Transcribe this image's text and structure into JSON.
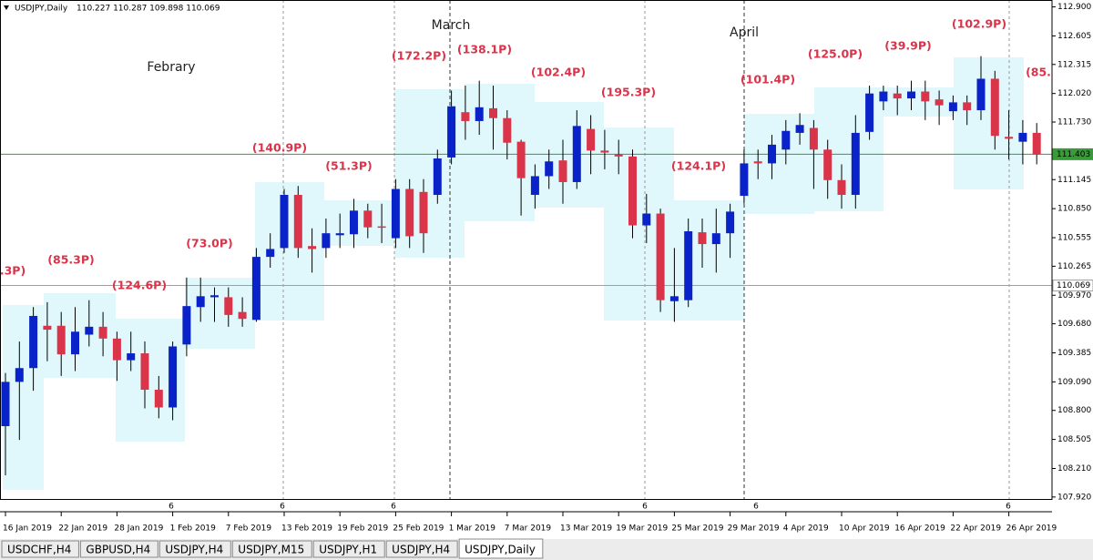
{
  "header": {
    "symbol": "USDJPY,Daily",
    "ohlc": "110.227 110.287 109.898 110.069"
  },
  "chart_data": {
    "type": "candlestick",
    "categories": [
      "16 Jan 2019",
      null,
      null,
      null,
      "22 Jan 2019",
      null,
      null,
      null,
      "28 Jan 2019",
      null,
      null,
      null,
      "1 Feb 2019",
      null,
      null,
      null,
      "7 Feb 2019",
      null,
      null,
      null,
      "13 Feb 2019",
      null,
      null,
      null,
      "19 Feb 2019",
      null,
      null,
      null,
      "25 Feb 2019",
      null,
      null,
      null,
      "1 Mar 2019",
      null,
      null,
      null,
      "7 Mar 2019",
      null,
      null,
      null,
      "13 Mar 2019",
      null,
      null,
      null,
      "19 Mar 2019",
      null,
      null,
      null,
      "25 Mar 2019",
      null,
      null,
      null,
      "29 Mar 2019",
      null,
      null,
      null,
      "4 Apr 2019",
      null,
      null,
      null,
      "10 Apr 2019",
      null,
      null,
      null,
      "16 Apr 2019",
      null,
      null,
      null,
      "22 Apr 2019",
      null,
      null,
      null,
      "26 Apr 2019",
      null,
      null
    ],
    "open": [
      108.64,
      109.09,
      109.23,
      109.66,
      109.66,
      109.37,
      109.57,
      109.65,
      109.53,
      109.31,
      109.38,
      109.01,
      108.83,
      109.47,
      109.85,
      109.95,
      109.95,
      109.8,
      109.72,
      110.36,
      110.45,
      110.99,
      110.47,
      110.45,
      110.58,
      110.59,
      110.83,
      110.67,
      110.55,
      111.05,
      111.02,
      110.99,
      111.37,
      111.83,
      111.74,
      111.87,
      111.77,
      111.53,
      110.99,
      111.18,
      111.34,
      111.12,
      111.66,
      111.44,
      111.4,
      111.38,
      110.68,
      110.8,
      109.91,
      109.92,
      110.61,
      110.49,
      110.6,
      110.98,
      111.33,
      111.31,
      111.45,
      111.62,
      111.67,
      111.45,
      111.14,
      110.99,
      111.63,
      111.94,
      112.02,
      111.97,
      112.04,
      111.96,
      111.84,
      111.93,
      111.85,
      112.17,
      111.58,
      111.53,
      111.62
    ],
    "high": [
      109.18,
      109.5,
      109.85,
      109.9,
      109.8,
      109.85,
      109.92,
      109.8,
      109.6,
      109.6,
      109.5,
      109.15,
      109.5,
      110.15,
      110.15,
      110.05,
      110.05,
      109.95,
      110.45,
      110.6,
      111.05,
      111.08,
      110.65,
      110.75,
      110.8,
      110.95,
      110.9,
      110.9,
      111.15,
      111.15,
      111.15,
      111.45,
      112.05,
      112.1,
      112.15,
      112.1,
      111.85,
      111.55,
      111.3,
      111.45,
      111.55,
      111.85,
      111.8,
      111.65,
      111.55,
      111.45,
      111.0,
      110.85,
      110.45,
      110.75,
      110.75,
      110.85,
      110.9,
      111.45,
      111.45,
      111.6,
      111.75,
      111.82,
      111.75,
      111.55,
      111.3,
      111.8,
      112.1,
      112.1,
      112.1,
      112.15,
      112.15,
      112.05,
      112.0,
      112.0,
      112.4,
      112.25,
      111.85,
      111.75,
      111.72
    ],
    "low": [
      108.14,
      108.5,
      109.0,
      109.3,
      109.15,
      109.2,
      109.45,
      109.35,
      109.1,
      109.2,
      108.82,
      108.72,
      108.7,
      109.35,
      109.7,
      109.7,
      109.65,
      109.65,
      109.7,
      110.25,
      110.4,
      110.35,
      110.2,
      110.35,
      110.45,
      110.45,
      110.55,
      110.5,
      110.45,
      110.45,
      110.4,
      110.9,
      111.3,
      111.55,
      111.6,
      111.45,
      111.35,
      110.78,
      110.85,
      111.05,
      110.9,
      111.05,
      111.2,
      111.25,
      111.2,
      110.55,
      110.5,
      109.8,
      109.7,
      109.85,
      110.25,
      110.2,
      110.35,
      110.9,
      111.15,
      111.15,
      111.3,
      111.5,
      111.05,
      110.95,
      110.85,
      110.85,
      111.55,
      111.85,
      111.8,
      111.85,
      111.75,
      111.7,
      111.75,
      111.7,
      111.75,
      111.45,
      111.35,
      111.3,
      111.3
    ],
    "close": [
      109.09,
      109.23,
      109.76,
      109.62,
      109.37,
      109.6,
      109.65,
      109.53,
      109.31,
      109.38,
      109.01,
      108.83,
      109.45,
      109.86,
      109.96,
      109.97,
      109.77,
      109.73,
      110.36,
      110.44,
      110.99,
      110.45,
      110.44,
      110.6,
      110.6,
      110.83,
      110.66,
      110.66,
      111.05,
      110.57,
      110.6,
      111.36,
      111.89,
      111.74,
      111.88,
      111.77,
      111.52,
      111.16,
      111.18,
      111.33,
      111.12,
      111.69,
      111.44,
      111.42,
      111.38,
      110.68,
      110.8,
      109.92,
      109.96,
      110.62,
      110.49,
      110.6,
      110.82,
      111.31,
      111.31,
      111.5,
      111.64,
      111.7,
      111.45,
      111.14,
      110.99,
      111.62,
      112.02,
      112.04,
      111.97,
      112.04,
      111.94,
      111.9,
      111.93,
      111.85,
      112.17,
      111.59,
      111.56,
      111.62,
      111.4
    ],
    "up_color": "#0a23c8",
    "down_color": "#d9344a",
    "ylim": [
      107.9,
      112.97
    ],
    "yticks": [
      {
        "value": 112.9,
        "label": "112.900"
      },
      {
        "value": 112.605,
        "label": "112.605"
      },
      {
        "value": 112.315,
        "label": "112.315"
      },
      {
        "value": 112.02,
        "label": "112.020"
      },
      {
        "value": 111.73,
        "label": "111.730"
      },
      {
        "value": 111.145,
        "label": "111.145"
      },
      {
        "value": 110.85,
        "label": "110.850"
      },
      {
        "value": 110.555,
        "label": "110.555"
      },
      {
        "value": 110.265,
        "label": "110.265"
      },
      {
        "value": 109.97,
        "label": "109.970"
      },
      {
        "value": 109.68,
        "label": "109.680"
      },
      {
        "value": 109.385,
        "label": "109.385"
      },
      {
        "value": 109.09,
        "label": "109.090"
      },
      {
        "value": 108.8,
        "label": "108.800"
      },
      {
        "value": 108.505,
        "label": "108.505"
      },
      {
        "value": 108.21,
        "label": "108.210"
      },
      {
        "value": 107.92,
        "label": "107.920"
      }
    ],
    "price_lines": [
      {
        "value": 111.403,
        "label": "111.403",
        "color": "#3a9a3a"
      },
      {
        "value": 110.069,
        "label": "110.069",
        "color": "#a0a0a0"
      }
    ],
    "annotations": [
      ".3P)",
      "(85.3P)",
      "(124.6P)",
      "(73.0P)",
      "(140.9P)",
      "(51.3P)",
      "(172.2P)",
      "(138.1P)",
      "(102.4P)",
      "(195.3P)",
      "(124.1P)",
      "(101.4P)",
      "(125.0P)",
      "(39.9P)",
      "(102.9P)",
      "(85."
    ],
    "months": [
      "Febrary",
      "March",
      "April"
    ],
    "separator_labels": [
      "6",
      "6",
      "6",
      "6",
      "6",
      "6"
    ]
  },
  "tabs": [
    "USDCHF,H4",
    "GBPUSD,H4",
    "USDJPY,H4",
    "USDJPY,M15",
    "USDJPY,H1",
    "USDJPY,H4",
    "USDJPY,Daily"
  ]
}
